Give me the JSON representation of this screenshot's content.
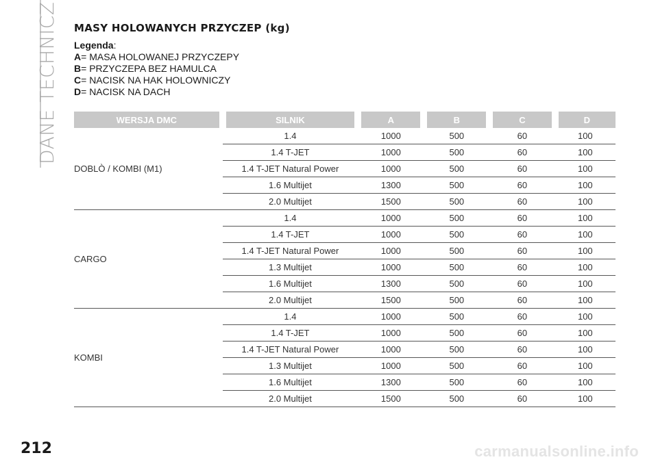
{
  "sidebar": {
    "section_title": "DANE TECHNICZNE"
  },
  "page": {
    "number": "212"
  },
  "document": {
    "title": "MASY HOLOWANYCH PRZYCZEP (kg)",
    "legend_label": "Legenda",
    "legend": [
      {
        "key": "A",
        "text": "= MASA HOLOWANEJ PRZYCZEPY"
      },
      {
        "key": "B",
        "text": "= PRZYCZEPA BEZ HAMULCA"
      },
      {
        "key": "C",
        "text": "= NACISK NA HAK HOLOWNICZY"
      },
      {
        "key": "D",
        "text": "= NACISK NA DACH"
      }
    ]
  },
  "table": {
    "headers": [
      "WERSJA DMC",
      "SILNIK",
      "A",
      "B",
      "C",
      "D"
    ],
    "groups": [
      {
        "name": "DOBLÒ / KOMBI (M1)",
        "rows": [
          [
            "1.4",
            "1000",
            "500",
            "60",
            "100"
          ],
          [
            "1.4 T-JET",
            "1000",
            "500",
            "60",
            "100"
          ],
          [
            "1.4 T-JET Natural Power",
            "1000",
            "500",
            "60",
            "100"
          ],
          [
            "1.6 Multijet",
            "1300",
            "500",
            "60",
            "100"
          ],
          [
            "2.0 Multijet",
            "1500",
            "500",
            "60",
            "100"
          ]
        ]
      },
      {
        "name": "CARGO",
        "rows": [
          [
            "1.4",
            "1000",
            "500",
            "60",
            "100"
          ],
          [
            "1.4 T-JET",
            "1000",
            "500",
            "60",
            "100"
          ],
          [
            "1.4 T-JET Natural Power",
            "1000",
            "500",
            "60",
            "100"
          ],
          [
            "1.3 Multijet",
            "1000",
            "500",
            "60",
            "100"
          ],
          [
            "1.6 Multijet",
            "1300",
            "500",
            "60",
            "100"
          ],
          [
            "2.0 Multijet",
            "1500",
            "500",
            "60",
            "100"
          ]
        ]
      },
      {
        "name": "KOMBI",
        "rows": [
          [
            "1.4",
            "1000",
            "500",
            "60",
            "100"
          ],
          [
            "1.4 T-JET",
            "1000",
            "500",
            "60",
            "100"
          ],
          [
            "1.4 T-JET Natural Power",
            "1000",
            "500",
            "60",
            "100"
          ],
          [
            "1.3 Multijet",
            "1000",
            "500",
            "60",
            "100"
          ],
          [
            "1.6 Multijet",
            "1300",
            "500",
            "60",
            "100"
          ],
          [
            "2.0 Multijet",
            "1500",
            "500",
            "60",
            "100"
          ]
        ]
      }
    ]
  },
  "watermark": "carmanualsonline.info"
}
